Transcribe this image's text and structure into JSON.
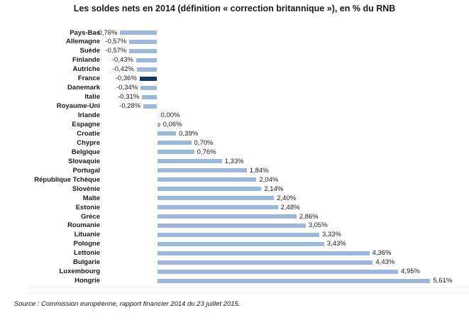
{
  "title": "Les soldes nets en 2014 (définition « correction britannique »), en % du RNB",
  "source_note": "Source : Commission européenne, rapport financier 2014 du 23 juillet 2015.",
  "colors": {
    "bar": "#9BB8DC",
    "highlight_bar": "#17375E",
    "zero_tick_bar": "#D9E4F1",
    "text": "#1a1a1a",
    "divider": "#efefef"
  },
  "chart_data": {
    "type": "bar",
    "orientation": "horizontal",
    "title": "Les soldes nets en 2014 (définition « correction britannique »), en % du RNB",
    "xlabel": "",
    "ylabel": "",
    "unit": "% du RNB",
    "xlim": [
      -1.2,
      6.4
    ],
    "grid": false,
    "legend": "none",
    "highlight_category": "France",
    "categories": [
      "Pays-Bas",
      "Allemagne",
      "Suède",
      "Finlande",
      "Autriche",
      "France",
      "Danemark",
      "Italie",
      "Royaume-Uni",
      "Irlande",
      "Espagne",
      "Croatie",
      "Chypre",
      "Belgique",
      "Slovaquie",
      "Portugal",
      "République Tchèque",
      "Slovénie",
      "Malte",
      "Estonie",
      "Grèce",
      "Roumanie",
      "Lituanie",
      "Pologne",
      "Lettonie",
      "Bulgarie",
      "Luxembourg",
      "Hongrie"
    ],
    "values": [
      -0.76,
      -0.57,
      -0.57,
      -0.43,
      -0.42,
      -0.36,
      -0.34,
      -0.31,
      -0.28,
      0.0,
      0.06,
      0.39,
      0.7,
      0.76,
      1.33,
      1.84,
      2.04,
      2.14,
      2.4,
      2.48,
      2.86,
      3.05,
      3.33,
      3.43,
      4.36,
      4.43,
      4.95,
      5.61
    ],
    "data_labels": [
      "-0,76%",
      "-0,57%",
      "-0,57%",
      "-0,43%",
      "-0,42%",
      "-0,36%",
      "-0,34%",
      "-0,31%",
      "-0,28%",
      "0,00%",
      "0,06%",
      "0,39%",
      "0,70%",
      "0,76%",
      "1,33%",
      "1,84%",
      "2,04%",
      "2,14%",
      "2,40%",
      "2,48%",
      "2,86%",
      "3,05%",
      "3,33%",
      "3,43%",
      "4,36%",
      "4,43%",
      "4,95%",
      "5,61%"
    ]
  }
}
